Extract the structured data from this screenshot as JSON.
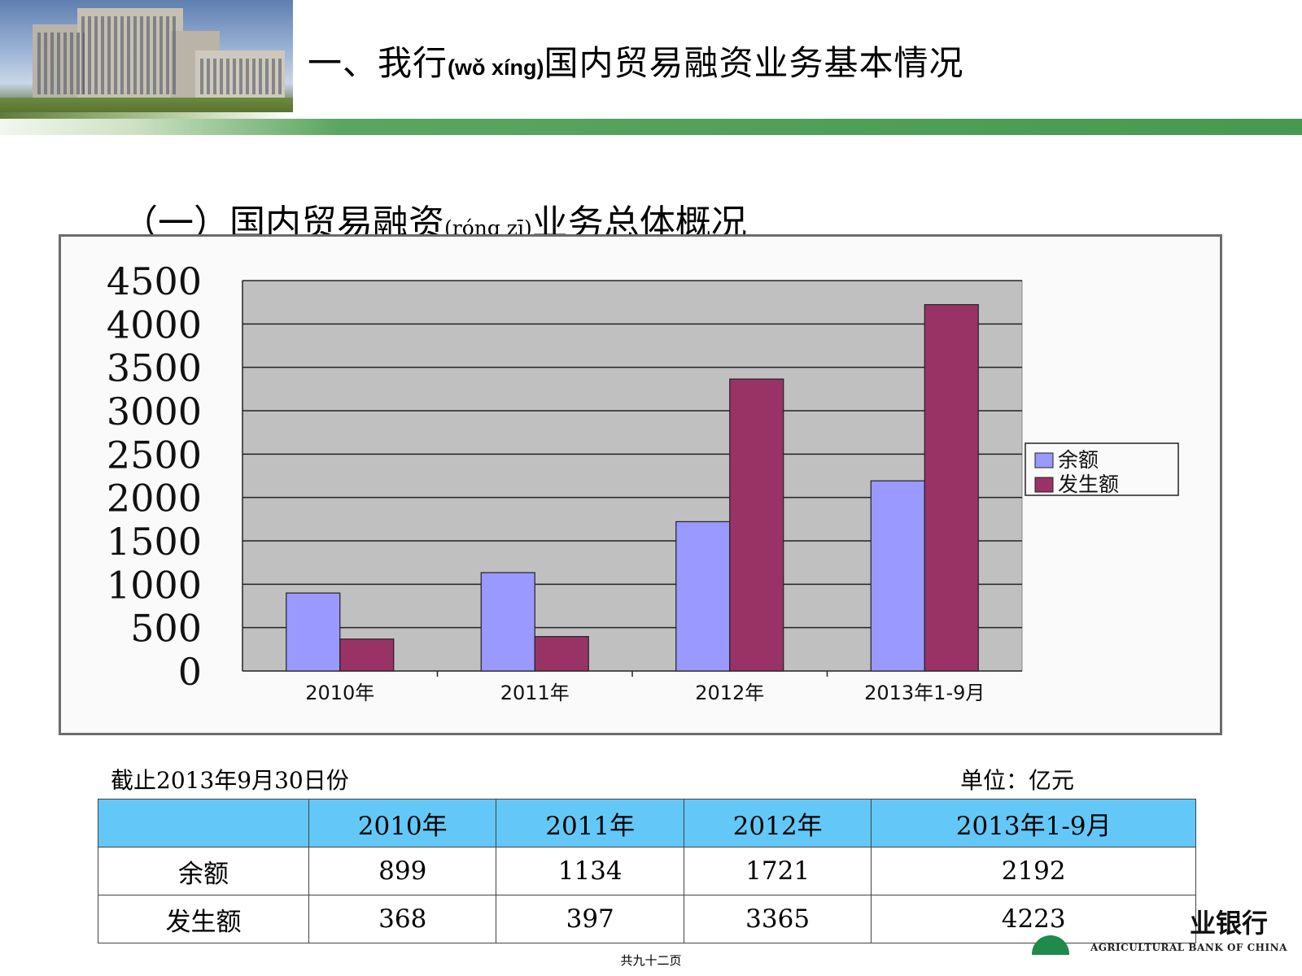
{
  "header": {
    "title_prefix": "一、我行",
    "title_pinyin": "(wǒ xíng)",
    "title_suffix": "国内贸易融资业务基本情况"
  },
  "section": {
    "title_prefix": "（一）国内贸易融资",
    "title_pinyin": "(róng zī)",
    "title_suffix": "业务总体概况"
  },
  "chart_data": {
    "type": "bar",
    "categories": [
      "2010年",
      "2011年",
      "2012年",
      "2013年1-9月"
    ],
    "series": [
      {
        "name": "余额",
        "values": [
          899,
          1134,
          1721,
          2192
        ],
        "color": "#9999ff"
      },
      {
        "name": "发生额",
        "values": [
          368,
          397,
          3365,
          4223
        ],
        "color": "#993366"
      }
    ],
    "yticks": [
      "0",
      "500",
      "1000",
      "1500",
      "2000",
      "2500",
      "3000",
      "3500",
      "4000",
      "4500"
    ],
    "ylim": [
      0,
      4500
    ],
    "grid": true,
    "legend": "right",
    "plot_background": "#c0c0c0"
  },
  "notes": {
    "as_of": "截止2013年9月30日份",
    "unit": "单位：亿元"
  },
  "table": {
    "headers": [
      "",
      "2010年",
      "2011年",
      "2012年",
      "2013年1-9月"
    ],
    "rows": [
      {
        "label": "余额",
        "values": [
          "899",
          "1134",
          "1721",
          "2192"
        ]
      },
      {
        "label": "发生额",
        "values": [
          "368",
          "397",
          "3365",
          "4223"
        ]
      }
    ]
  },
  "footer": {
    "bank_name": "业银行",
    "bank_name_en": "AGRICULTURAL BANK OF CHINA",
    "page_count": "共九十二页"
  }
}
